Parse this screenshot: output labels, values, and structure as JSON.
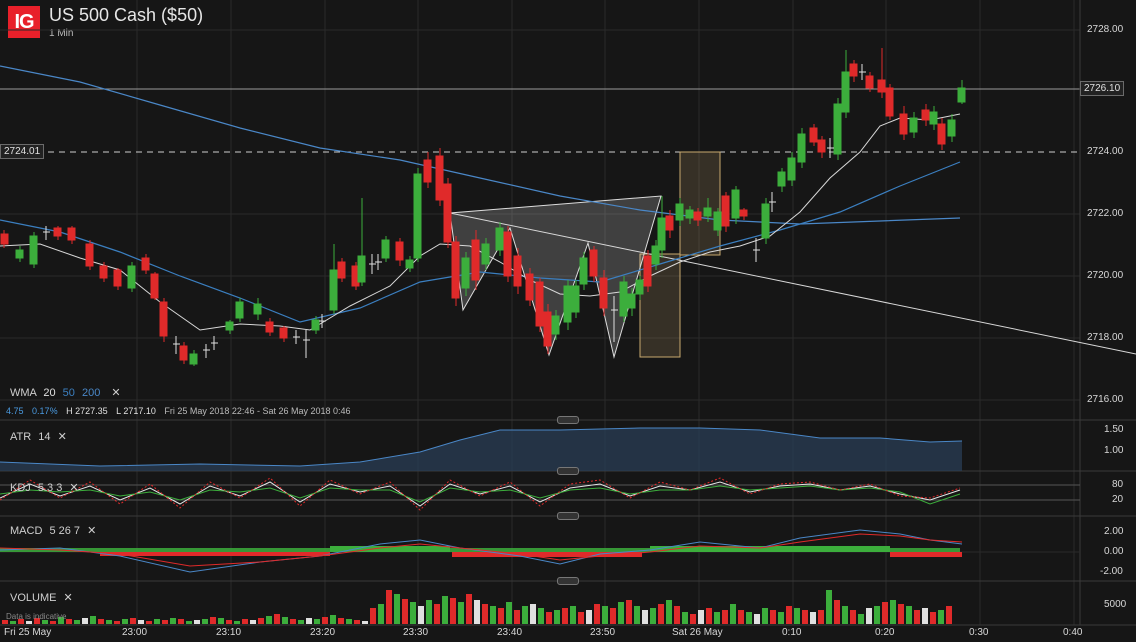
{
  "header": {
    "logo": "IG",
    "title": "US 500 Cash ($50)",
    "interval": "1 Min"
  },
  "legend": {
    "wma": {
      "name": "WMA",
      "p1": "20",
      "p2": "50",
      "p3": "200",
      "close": "✕"
    },
    "stats": {
      "change": "4.75",
      "change_pct": "0.17%",
      "high": "H 2727.35",
      "low": "L 2717.10",
      "range": "Fri 25 May 2018 22:46 - Sat 26 May 2018 0:46"
    }
  },
  "price_axis": {
    "ticks": [
      "2728.00",
      "2726.10",
      "2724.00",
      "2722.00",
      "2720.00",
      "2718.00",
      "2716.00"
    ],
    "current": "2726.10",
    "marker_left": "2724.01"
  },
  "atr": {
    "name": "ATR",
    "period": "14",
    "close": "✕",
    "ticks": [
      "1.50",
      "1.00"
    ]
  },
  "kdj": {
    "name": "KDJ",
    "params": "5 3 3",
    "close": "✕",
    "ticks": [
      "80",
      "20"
    ]
  },
  "macd": {
    "name": "MACD",
    "params": "5 26 7",
    "close": "✕",
    "ticks": [
      "2.00",
      "0.00",
      "-2.00"
    ]
  },
  "volume": {
    "name": "VOLUME",
    "close": "✕",
    "tick": "5000",
    "note": "Data is indicative"
  },
  "time_axis": {
    "labels": [
      "Fri 25 May",
      "23:00",
      "23:10",
      "23:20",
      "23:30",
      "23:40",
      "23:50",
      "Sat 26 May",
      "0:10",
      "0:20",
      "0:30",
      "0:40"
    ]
  },
  "colors": {
    "bull": "#3cae3c",
    "bear": "#e02a2a",
    "wma20": "#d8d8d8",
    "wma50": "#3b7fc0",
    "wma200": "#4a87c7",
    "band": "#c8a96e"
  }
}
